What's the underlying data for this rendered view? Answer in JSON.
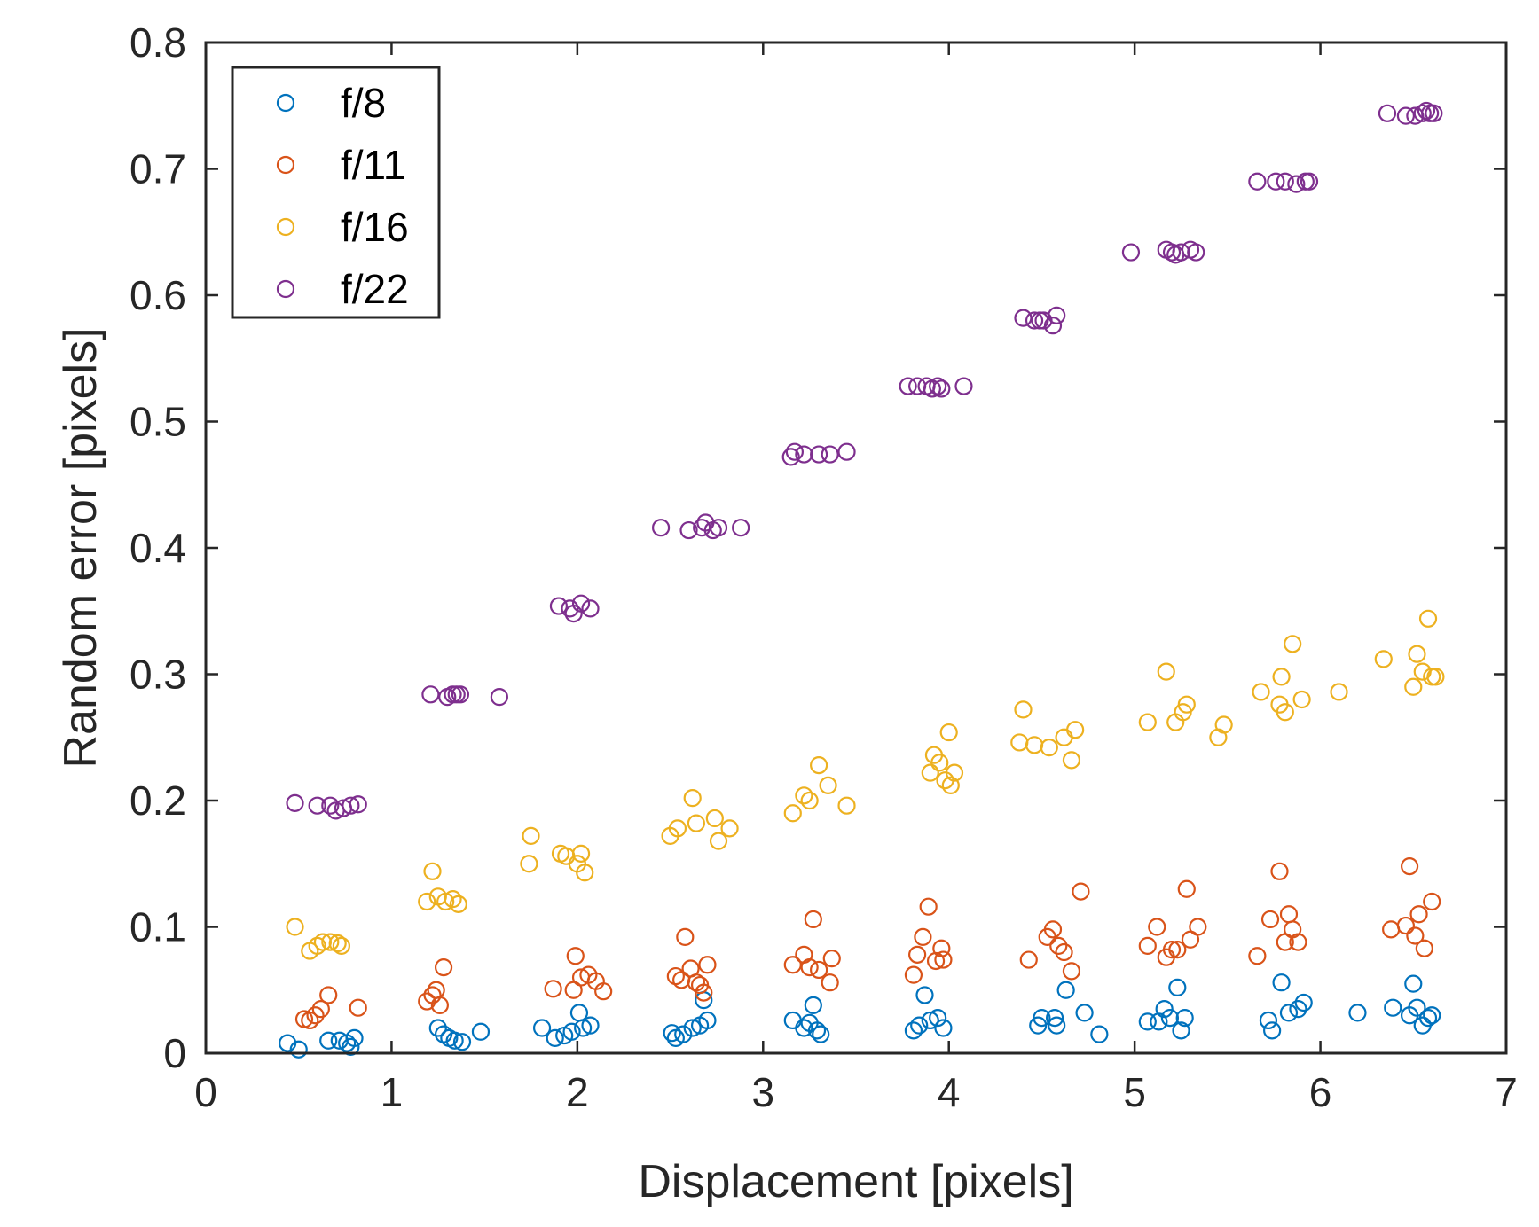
{
  "chart_data": {
    "type": "scatter",
    "title": "",
    "xlabel": "Displacement [pixels]",
    "ylabel": "Random error [pixels]",
    "xlim": [
      0,
      7
    ],
    "ylim": [
      0,
      0.8
    ],
    "xticks": [
      0,
      1,
      2,
      3,
      4,
      5,
      6,
      7
    ],
    "xtick_labels": [
      "0",
      "1",
      "2",
      "3",
      "4",
      "5",
      "6",
      "7"
    ],
    "yticks": [
      0,
      0.1,
      0.2,
      0.3,
      0.4,
      0.5,
      0.6,
      0.7,
      0.8
    ],
    "ytick_labels": [
      "0",
      "0.1",
      "0.2",
      "0.3",
      "0.4",
      "0.5",
      "0.6",
      "0.7",
      "0.8"
    ],
    "grid": false,
    "legend_position": "top-left",
    "marker": "open-circle",
    "series": [
      {
        "name": "f/8",
        "color": "#0072BD",
        "points": [
          [
            0.44,
            0.008
          ],
          [
            0.5,
            0.003
          ],
          [
            0.66,
            0.01
          ],
          [
            0.72,
            0.01
          ],
          [
            0.76,
            0.008
          ],
          [
            0.78,
            0.005
          ],
          [
            0.8,
            0.012
          ],
          [
            1.25,
            0.02
          ],
          [
            1.28,
            0.015
          ],
          [
            1.31,
            0.012
          ],
          [
            1.34,
            0.01
          ],
          [
            1.38,
            0.009
          ],
          [
            1.48,
            0.017
          ],
          [
            1.81,
            0.02
          ],
          [
            1.88,
            0.012
          ],
          [
            1.93,
            0.014
          ],
          [
            1.97,
            0.017
          ],
          [
            2.01,
            0.032
          ],
          [
            2.03,
            0.02
          ],
          [
            2.07,
            0.022
          ],
          [
            2.51,
            0.016
          ],
          [
            2.53,
            0.012
          ],
          [
            2.57,
            0.015
          ],
          [
            2.62,
            0.02
          ],
          [
            2.66,
            0.022
          ],
          [
            2.68,
            0.042
          ],
          [
            2.7,
            0.026
          ],
          [
            3.16,
            0.026
          ],
          [
            3.22,
            0.02
          ],
          [
            3.25,
            0.024
          ],
          [
            3.27,
            0.038
          ],
          [
            3.29,
            0.018
          ],
          [
            3.31,
            0.015
          ],
          [
            3.81,
            0.018
          ],
          [
            3.84,
            0.022
          ],
          [
            3.87,
            0.046
          ],
          [
            3.9,
            0.026
          ],
          [
            3.94,
            0.028
          ],
          [
            3.97,
            0.02
          ],
          [
            4.48,
            0.022
          ],
          [
            4.5,
            0.028
          ],
          [
            4.57,
            0.028
          ],
          [
            4.58,
            0.022
          ],
          [
            4.63,
            0.05
          ],
          [
            4.73,
            0.032
          ],
          [
            4.81,
            0.015
          ],
          [
            5.07,
            0.025
          ],
          [
            5.13,
            0.025
          ],
          [
            5.16,
            0.035
          ],
          [
            5.19,
            0.028
          ],
          [
            5.23,
            0.052
          ],
          [
            5.25,
            0.018
          ],
          [
            5.27,
            0.028
          ],
          [
            5.72,
            0.026
          ],
          [
            5.74,
            0.018
          ],
          [
            5.79,
            0.056
          ],
          [
            5.83,
            0.032
          ],
          [
            5.88,
            0.035
          ],
          [
            5.91,
            0.04
          ],
          [
            6.2,
            0.032
          ],
          [
            6.39,
            0.036
          ],
          [
            6.48,
            0.03
          ],
          [
            6.5,
            0.055
          ],
          [
            6.52,
            0.036
          ],
          [
            6.55,
            0.022
          ],
          [
            6.58,
            0.028
          ],
          [
            6.6,
            0.03
          ]
        ]
      },
      {
        "name": "f/11",
        "color": "#D95319",
        "points": [
          [
            0.53,
            0.027
          ],
          [
            0.56,
            0.026
          ],
          [
            0.59,
            0.03
          ],
          [
            0.62,
            0.035
          ],
          [
            0.66,
            0.046
          ],
          [
            0.82,
            0.036
          ],
          [
            1.19,
            0.041
          ],
          [
            1.22,
            0.046
          ],
          [
            1.24,
            0.05
          ],
          [
            1.26,
            0.038
          ],
          [
            1.28,
            0.068
          ],
          [
            1.87,
            0.051
          ],
          [
            1.98,
            0.05
          ],
          [
            1.99,
            0.077
          ],
          [
            2.02,
            0.06
          ],
          [
            2.06,
            0.062
          ],
          [
            2.1,
            0.057
          ],
          [
            2.14,
            0.049
          ],
          [
            2.53,
            0.061
          ],
          [
            2.56,
            0.058
          ],
          [
            2.58,
            0.092
          ],
          [
            2.61,
            0.067
          ],
          [
            2.64,
            0.056
          ],
          [
            2.66,
            0.054
          ],
          [
            2.68,
            0.048
          ],
          [
            2.7,
            0.07
          ],
          [
            3.16,
            0.07
          ],
          [
            3.22,
            0.078
          ],
          [
            3.25,
            0.068
          ],
          [
            3.27,
            0.106
          ],
          [
            3.3,
            0.066
          ],
          [
            3.36,
            0.056
          ],
          [
            3.37,
            0.075
          ],
          [
            3.81,
            0.062
          ],
          [
            3.83,
            0.078
          ],
          [
            3.86,
            0.092
          ],
          [
            3.89,
            0.116
          ],
          [
            3.93,
            0.073
          ],
          [
            3.96,
            0.083
          ],
          [
            3.97,
            0.074
          ],
          [
            4.43,
            0.074
          ],
          [
            4.53,
            0.092
          ],
          [
            4.56,
            0.098
          ],
          [
            4.59,
            0.085
          ],
          [
            4.62,
            0.08
          ],
          [
            4.66,
            0.065
          ],
          [
            4.71,
            0.128
          ],
          [
            5.07,
            0.085
          ],
          [
            5.12,
            0.1
          ],
          [
            5.17,
            0.076
          ],
          [
            5.2,
            0.082
          ],
          [
            5.23,
            0.082
          ],
          [
            5.28,
            0.13
          ],
          [
            5.3,
            0.09
          ],
          [
            5.34,
            0.1
          ],
          [
            5.66,
            0.077
          ],
          [
            5.73,
            0.106
          ],
          [
            5.78,
            0.144
          ],
          [
            5.81,
            0.088
          ],
          [
            5.83,
            0.11
          ],
          [
            5.85,
            0.098
          ],
          [
            5.88,
            0.088
          ],
          [
            6.38,
            0.098
          ],
          [
            6.46,
            0.101
          ],
          [
            6.48,
            0.148
          ],
          [
            6.51,
            0.093
          ],
          [
            6.53,
            0.11
          ],
          [
            6.56,
            0.083
          ],
          [
            6.6,
            0.12
          ]
        ]
      },
      {
        "name": "f/16",
        "color": "#EDB120",
        "points": [
          [
            0.48,
            0.1
          ],
          [
            0.56,
            0.081
          ],
          [
            0.6,
            0.085
          ],
          [
            0.63,
            0.088
          ],
          [
            0.67,
            0.088
          ],
          [
            0.71,
            0.087
          ],
          [
            0.73,
            0.085
          ],
          [
            1.19,
            0.12
          ],
          [
            1.22,
            0.144
          ],
          [
            1.25,
            0.124
          ],
          [
            1.29,
            0.12
          ],
          [
            1.33,
            0.122
          ],
          [
            1.36,
            0.118
          ],
          [
            1.74,
            0.15
          ],
          [
            1.75,
            0.172
          ],
          [
            1.91,
            0.158
          ],
          [
            1.94,
            0.156
          ],
          [
            2.0,
            0.15
          ],
          [
            2.02,
            0.158
          ],
          [
            2.04,
            0.143
          ],
          [
            2.5,
            0.172
          ],
          [
            2.54,
            0.178
          ],
          [
            2.62,
            0.202
          ],
          [
            2.64,
            0.182
          ],
          [
            2.74,
            0.186
          ],
          [
            2.76,
            0.168
          ],
          [
            2.82,
            0.178
          ],
          [
            3.16,
            0.19
          ],
          [
            3.22,
            0.204
          ],
          [
            3.25,
            0.2
          ],
          [
            3.3,
            0.228
          ],
          [
            3.35,
            0.212
          ],
          [
            3.45,
            0.196
          ],
          [
            3.9,
            0.222
          ],
          [
            3.92,
            0.236
          ],
          [
            3.95,
            0.23
          ],
          [
            3.98,
            0.216
          ],
          [
            4.0,
            0.254
          ],
          [
            4.01,
            0.212
          ],
          [
            4.03,
            0.222
          ],
          [
            4.38,
            0.246
          ],
          [
            4.4,
            0.272
          ],
          [
            4.46,
            0.244
          ],
          [
            4.54,
            0.242
          ],
          [
            4.62,
            0.25
          ],
          [
            4.66,
            0.232
          ],
          [
            4.68,
            0.256
          ],
          [
            5.07,
            0.262
          ],
          [
            5.17,
            0.302
          ],
          [
            5.22,
            0.262
          ],
          [
            5.26,
            0.27
          ],
          [
            5.28,
            0.276
          ],
          [
            5.45,
            0.25
          ],
          [
            5.48,
            0.26
          ],
          [
            5.68,
            0.286
          ],
          [
            5.78,
            0.276
          ],
          [
            5.79,
            0.298
          ],
          [
            5.81,
            0.27
          ],
          [
            5.85,
            0.324
          ],
          [
            5.9,
            0.28
          ],
          [
            6.1,
            0.286
          ],
          [
            6.34,
            0.312
          ],
          [
            6.5,
            0.29
          ],
          [
            6.52,
            0.316
          ],
          [
            6.55,
            0.302
          ],
          [
            6.58,
            0.344
          ],
          [
            6.6,
            0.298
          ],
          [
            6.62,
            0.298
          ]
        ]
      },
      {
        "name": "f/22",
        "color": "#7E2F8E",
        "points": [
          [
            0.48,
            0.198
          ],
          [
            0.6,
            0.196
          ],
          [
            0.67,
            0.196
          ],
          [
            0.7,
            0.192
          ],
          [
            0.74,
            0.194
          ],
          [
            0.78,
            0.196
          ],
          [
            0.82,
            0.197
          ],
          [
            1.21,
            0.284
          ],
          [
            1.3,
            0.282
          ],
          [
            1.33,
            0.284
          ],
          [
            1.35,
            0.284
          ],
          [
            1.37,
            0.284
          ],
          [
            1.58,
            0.282
          ],
          [
            1.9,
            0.354
          ],
          [
            1.96,
            0.352
          ],
          [
            1.98,
            0.348
          ],
          [
            2.02,
            0.356
          ],
          [
            2.07,
            0.352
          ],
          [
            2.45,
            0.416
          ],
          [
            2.6,
            0.414
          ],
          [
            2.67,
            0.416
          ],
          [
            2.69,
            0.42
          ],
          [
            2.73,
            0.414
          ],
          [
            2.76,
            0.416
          ],
          [
            2.88,
            0.416
          ],
          [
            3.15,
            0.472
          ],
          [
            3.17,
            0.476
          ],
          [
            3.22,
            0.474
          ],
          [
            3.3,
            0.474
          ],
          [
            3.36,
            0.474
          ],
          [
            3.45,
            0.476
          ],
          [
            3.78,
            0.528
          ],
          [
            3.83,
            0.528
          ],
          [
            3.88,
            0.528
          ],
          [
            3.91,
            0.526
          ],
          [
            3.94,
            0.528
          ],
          [
            3.96,
            0.526
          ],
          [
            4.08,
            0.528
          ],
          [
            4.4,
            0.582
          ],
          [
            4.46,
            0.58
          ],
          [
            4.49,
            0.58
          ],
          [
            4.51,
            0.58
          ],
          [
            4.56,
            0.576
          ],
          [
            4.58,
            0.584
          ],
          [
            4.98,
            0.634
          ],
          [
            5.17,
            0.636
          ],
          [
            5.2,
            0.634
          ],
          [
            5.22,
            0.632
          ],
          [
            5.25,
            0.634
          ],
          [
            5.3,
            0.636
          ],
          [
            5.33,
            0.634
          ],
          [
            5.66,
            0.69
          ],
          [
            5.76,
            0.69
          ],
          [
            5.81,
            0.69
          ],
          [
            5.87,
            0.688
          ],
          [
            5.92,
            0.69
          ],
          [
            5.94,
            0.69
          ],
          [
            6.36,
            0.744
          ],
          [
            6.46,
            0.742
          ],
          [
            6.51,
            0.742
          ],
          [
            6.55,
            0.744
          ],
          [
            6.57,
            0.746
          ],
          [
            6.59,
            0.744
          ],
          [
            6.61,
            0.744
          ]
        ]
      }
    ]
  }
}
